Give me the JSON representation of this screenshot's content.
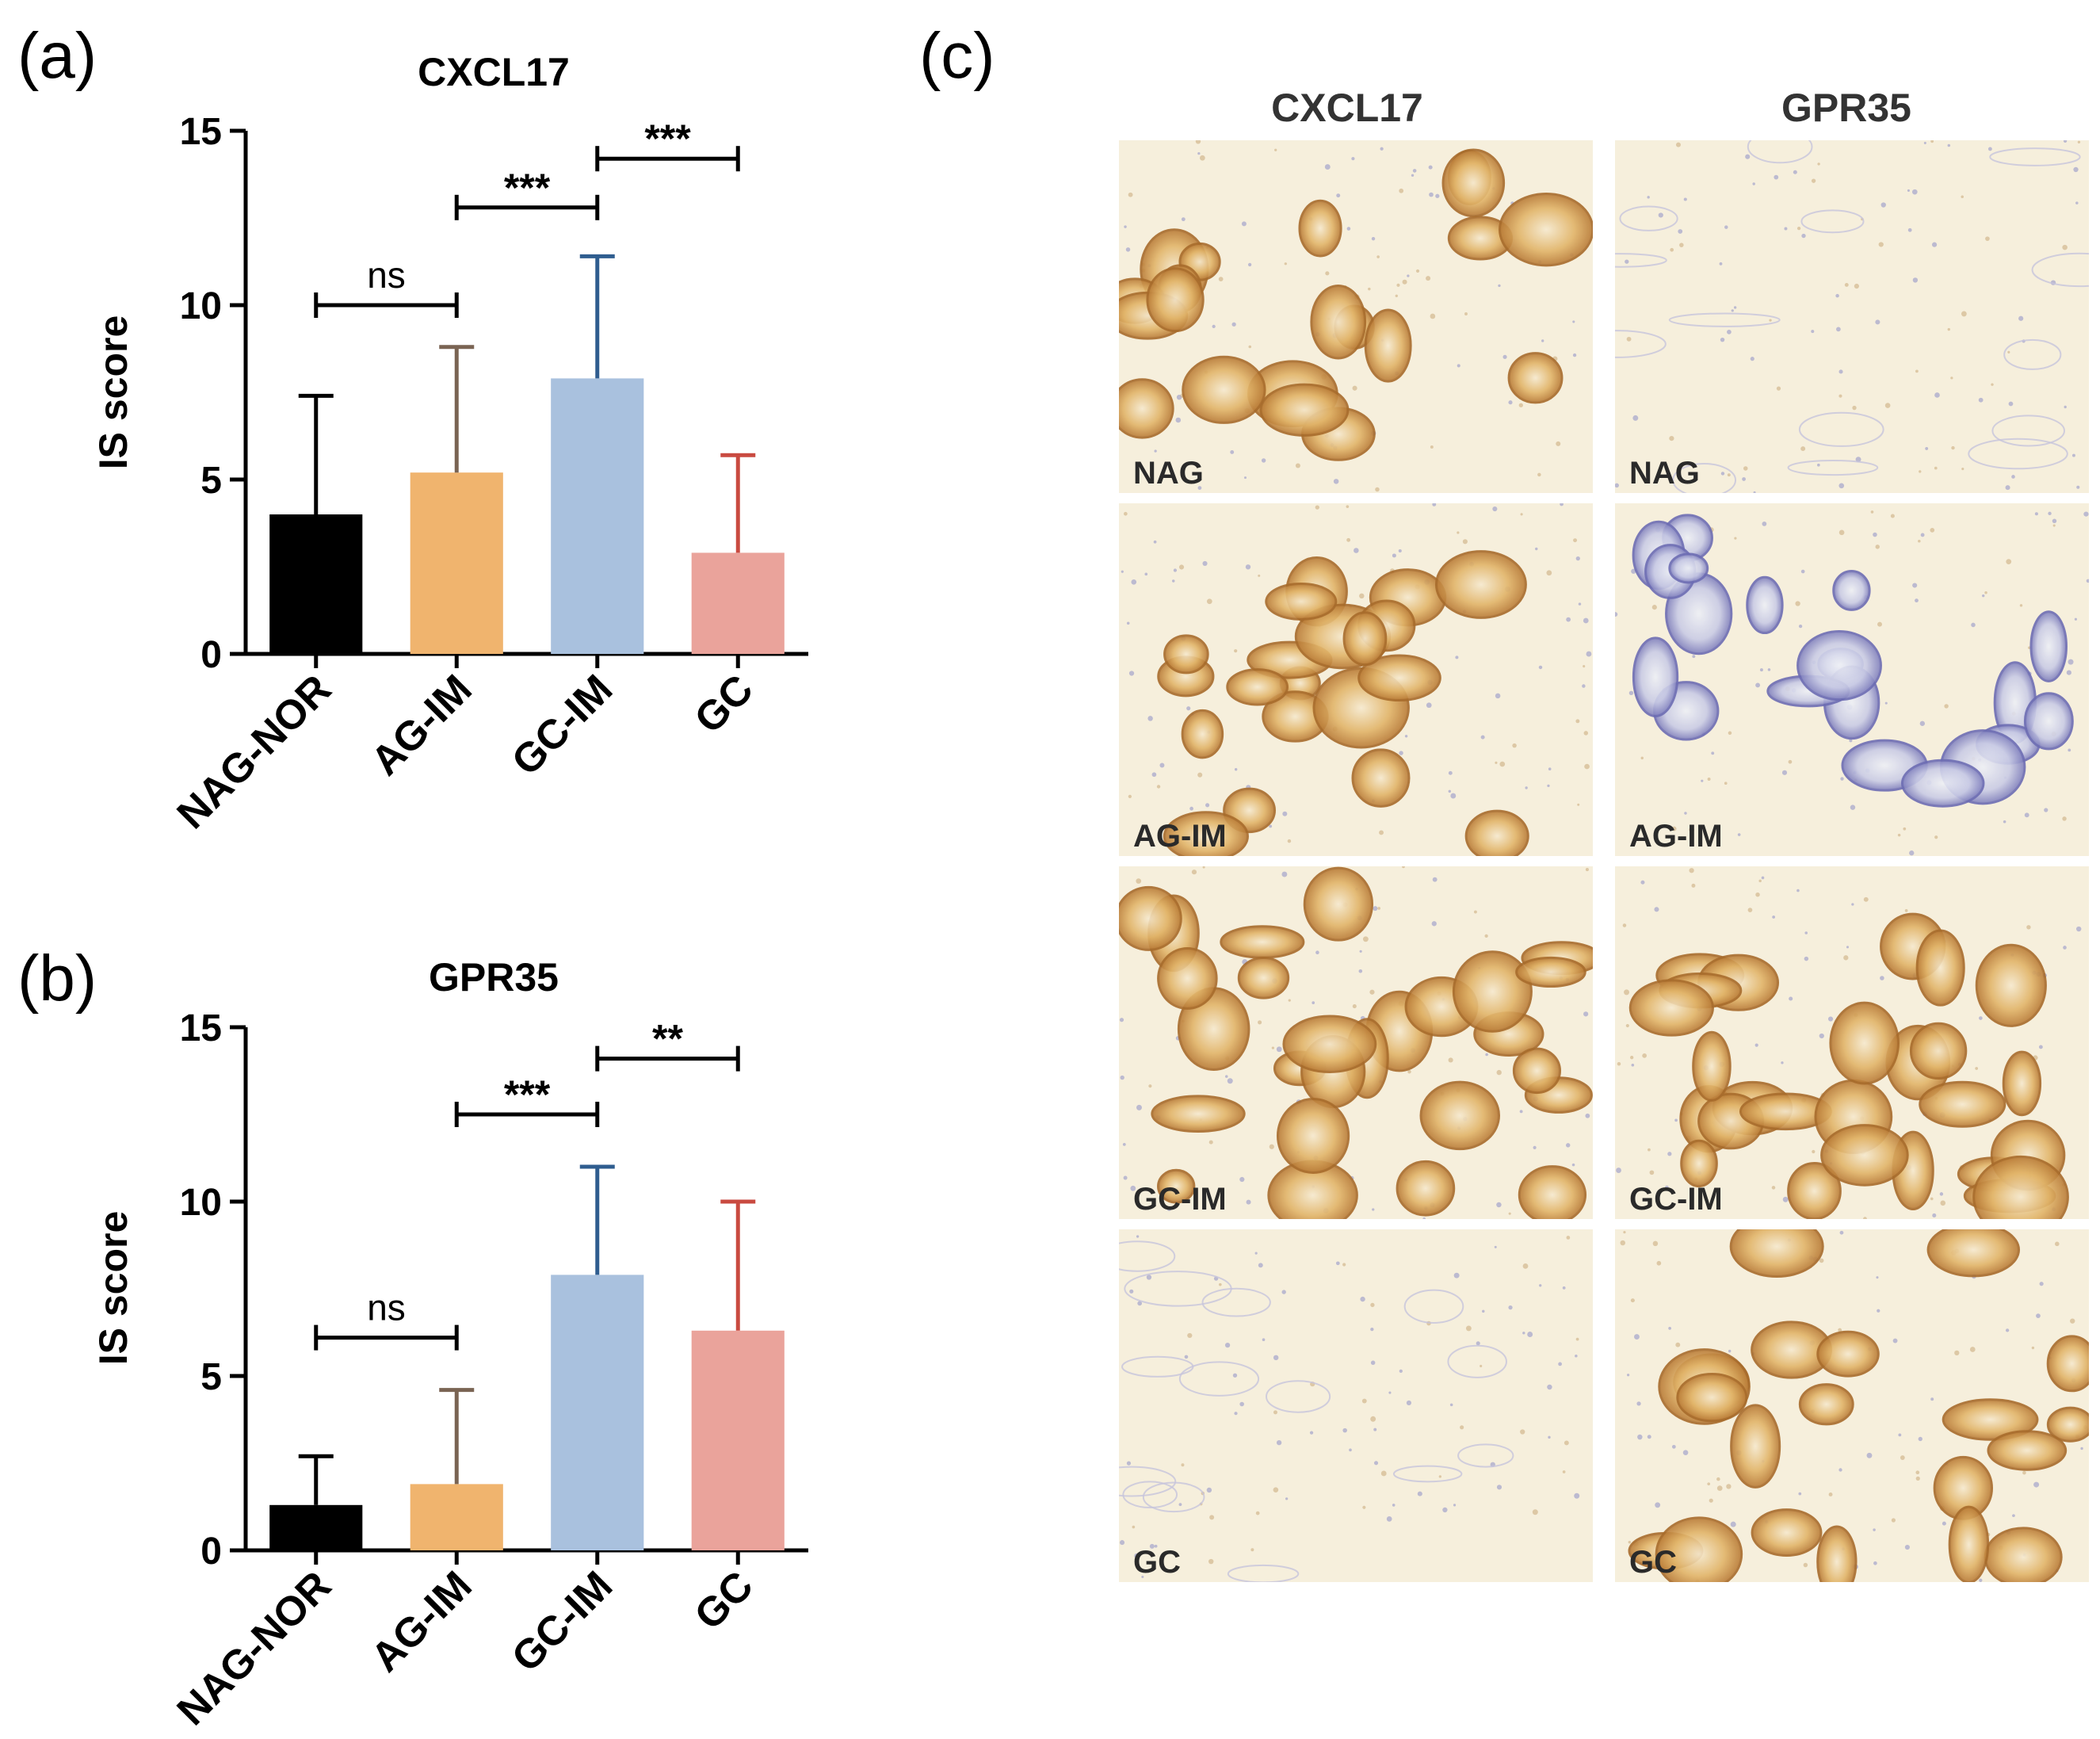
{
  "panels": {
    "a": "(a)",
    "b": "(b)",
    "c": "(c)"
  },
  "colors": {
    "NAG-NOR": "#000000",
    "AG-IM": "#f0b46e",
    "GC-IM": "#a9c1de",
    "GC": "#eaa39b",
    "err_NAG-NOR": "#000000",
    "err_AG-IM": "#7a6453",
    "err_GC-IM": "#2f5d8f",
    "err_GC": "#c94a40"
  },
  "chart_data": [
    {
      "type": "bar",
      "title": "CXCL17",
      "ylabel": "IS score",
      "xlabel": "",
      "categories": [
        "NAG-NOR",
        "AG-IM",
        "GC-IM",
        "GC"
      ],
      "values": [
        4.0,
        5.2,
        7.9,
        2.9
      ],
      "errors": [
        3.4,
        3.6,
        3.5,
        2.8
      ],
      "ylim": [
        0,
        15
      ],
      "yticks": [
        "0",
        "5",
        "10",
        "15"
      ],
      "comparisons": [
        {
          "from": 0,
          "to": 1,
          "label": "ns",
          "y": 10.0
        },
        {
          "from": 1,
          "to": 2,
          "label": "***",
          "y": 12.8
        },
        {
          "from": 2,
          "to": 3,
          "label": "***",
          "y": 14.2
        }
      ]
    },
    {
      "type": "bar",
      "title": "GPR35",
      "ylabel": "IS score",
      "xlabel": "",
      "categories": [
        "NAG-NOR",
        "AG-IM",
        "GC-IM",
        "GC"
      ],
      "values": [
        1.3,
        1.9,
        7.9,
        6.3
      ],
      "errors": [
        1.4,
        2.7,
        3.1,
        3.7
      ],
      "ylim": [
        0,
        15
      ],
      "yticks": [
        "0",
        "5",
        "10",
        "15"
      ],
      "comparisons": [
        {
          "from": 0,
          "to": 1,
          "label": "ns",
          "y": 6.1
        },
        {
          "from": 1,
          "to": 2,
          "label": "***",
          "y": 12.5
        },
        {
          "from": 2,
          "to": 3,
          "label": "**",
          "y": 14.1
        }
      ]
    }
  ],
  "micrographs": {
    "columns": [
      "CXCL17",
      "GPR35"
    ],
    "rows": [
      {
        "left": "NAG",
        "right": "NAG"
      },
      {
        "left": "AG-IM",
        "right": "AG-IM"
      },
      {
        "left": "GC-IM",
        "right": "GC-IM"
      },
      {
        "left": "GC",
        "right": "GC"
      }
    ]
  }
}
